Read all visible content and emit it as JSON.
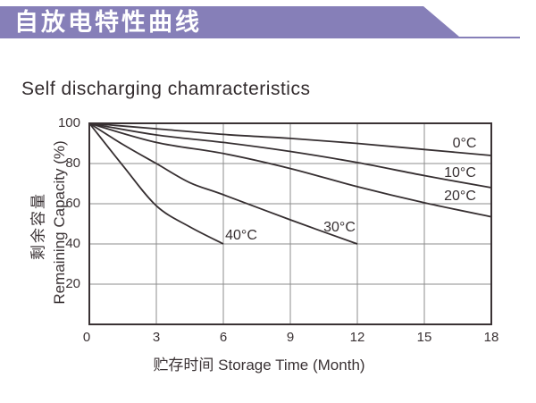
{
  "header": {
    "title_cn": "自放电特性曲线"
  },
  "colors": {
    "banner": "#867fb8",
    "banner_text": "#ffffff",
    "ink": "#3a3234",
    "curve": "#362f31",
    "grid": "#8c8c8c",
    "background": "#ffffff"
  },
  "chart_data": {
    "type": "line",
    "title": "Self discharging chamracteristics",
    "xlabel": "贮存时间 Storage Time (Month)",
    "ylabel_cn": "剩余容量",
    "ylabel_en": "Remaining Capacity (%)",
    "xlim": [
      0,
      18
    ],
    "ylim": [
      0,
      100
    ],
    "xticks": [
      0,
      3,
      6,
      9,
      12,
      15,
      18
    ],
    "yticks": [
      20,
      40,
      60,
      80,
      100
    ],
    "grid": true,
    "legend_position": "inline-labels",
    "series": [
      {
        "name": "0°C",
        "label_at": [
          16.8,
          90
        ],
        "points": [
          [
            0,
            100
          ],
          [
            3,
            97.3
          ],
          [
            6,
            94.5
          ],
          [
            9,
            92.5
          ],
          [
            12,
            90
          ],
          [
            15,
            87
          ],
          [
            18,
            84
          ]
        ]
      },
      {
        "name": "10°C",
        "label_at": [
          16.6,
          75
        ],
        "points": [
          [
            0,
            100
          ],
          [
            3,
            94.2
          ],
          [
            6,
            90.5
          ],
          [
            9,
            86
          ],
          [
            12,
            80.5
          ],
          [
            15,
            74
          ],
          [
            18,
            68
          ]
        ]
      },
      {
        "name": "20°C",
        "label_at": [
          16.6,
          63.5
        ],
        "points": [
          [
            0,
            100
          ],
          [
            3,
            90.5
          ],
          [
            6,
            85
          ],
          [
            9,
            77.5
          ],
          [
            12,
            68.5
          ],
          [
            15,
            60.5
          ],
          [
            18,
            53.5
          ]
        ]
      },
      {
        "name": "30°C",
        "label_at": [
          11.2,
          48
        ],
        "points": [
          [
            0,
            100
          ],
          [
            1.5,
            89.5
          ],
          [
            3,
            80
          ],
          [
            4.5,
            70.5
          ],
          [
            6,
            64.5
          ],
          [
            9,
            52
          ],
          [
            12,
            40
          ]
        ]
      },
      {
        "name": "40°C",
        "label_at": [
          6.8,
          44
        ],
        "points": [
          [
            0,
            100
          ],
          [
            1.5,
            79
          ],
          [
            3,
            59
          ],
          [
            4.5,
            48.5
          ],
          [
            6,
            40
          ]
        ]
      }
    ]
  }
}
